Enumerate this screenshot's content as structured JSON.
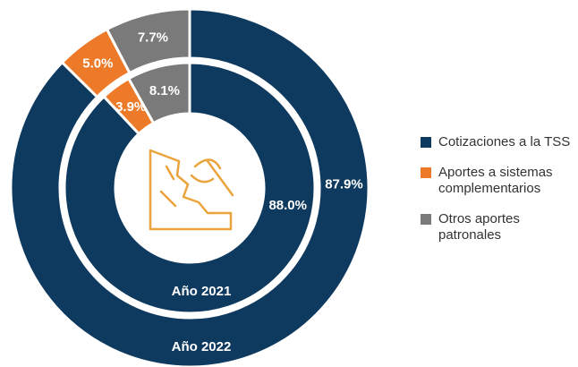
{
  "chart_data": {
    "type": "donut",
    "categories": [
      "Cotizaciones a la TSS",
      "Aportes a sistemas complementarios",
      "Otros aportes patronales"
    ],
    "colors": [
      "#0f3a5f",
      "#ec7a28",
      "#7a7a7a"
    ],
    "series": [
      {
        "name": "Año 2022",
        "values": [
          87.9,
          5.0,
          7.7
        ],
        "value_labels": [
          "87.9%",
          "5.0%",
          "7.7%"
        ]
      },
      {
        "name": "Año 2021",
        "values": [
          88.0,
          3.9,
          8.1
        ],
        "value_labels": [
          "88.0%",
          "3.9%",
          "8.1%"
        ]
      }
    ],
    "legend": "right"
  }
}
